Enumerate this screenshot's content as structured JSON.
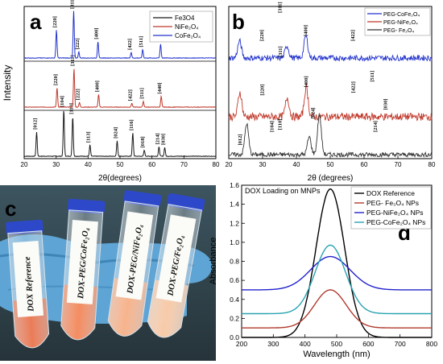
{
  "panel_letters": {
    "a": "a",
    "b": "b",
    "c": "c",
    "d": "d"
  },
  "chart_data": [
    {
      "panel": "a",
      "type": "line",
      "xlabel": "2θ(degrees)",
      "ylabel": "Intensity",
      "xlim": [
        20,
        80
      ],
      "x_ticks": [
        20,
        30,
        40,
        50,
        60,
        70,
        80
      ],
      "grid": false,
      "legend_position": "top-right",
      "series": [
        {
          "name": "Fe3O4",
          "color": "#1a1a1a",
          "peaks": [
            {
              "two_theta": 23.9,
              "height": 0.52,
              "label": "[012]"
            },
            {
              "two_theta": 32.4,
              "height": 1.0,
              "label": "[104]"
            },
            {
              "two_theta": 35.2,
              "height": 0.85,
              "label": "[110]"
            },
            {
              "two_theta": 40.6,
              "height": 0.24,
              "label": "[113]"
            },
            {
              "two_theta": 49.1,
              "height": 0.33,
              "label": "[024]"
            },
            {
              "two_theta": 54.0,
              "height": 0.5,
              "label": "[116]"
            },
            {
              "two_theta": 57.6,
              "height": 0.13,
              "label": "[018]"
            },
            {
              "two_theta": 62.2,
              "height": 0.2,
              "label": "[214]"
            },
            {
              "two_theta": 64.0,
              "height": 0.19,
              "label": "[030]"
            }
          ]
        },
        {
          "name": "NiFe₂O₄",
          "color": "#c0392b",
          "peaks": [
            {
              "two_theta": 30.3,
              "height": 0.5,
              "label": "[220]"
            },
            {
              "two_theta": 35.6,
              "height": 1.0,
              "label": "[311]"
            },
            {
              "two_theta": 37.3,
              "height": 0.12,
              "label": "[222]"
            },
            {
              "two_theta": 43.3,
              "height": 0.33,
              "label": "[400]"
            },
            {
              "two_theta": 53.7,
              "height": 0.1,
              "label": "[422]"
            },
            {
              "two_theta": 57.3,
              "height": 0.15,
              "label": "[511]"
            },
            {
              "two_theta": 62.9,
              "height": 0.28,
              "label": "[440]"
            }
          ]
        },
        {
          "name": "CoFe₂O₄",
          "color": "#2233cc",
          "peaks": [
            {
              "two_theta": 30.1,
              "height": 0.6,
              "label": "[220]"
            },
            {
              "two_theta": 35.5,
              "height": 1.0,
              "label": "[311]"
            },
            {
              "two_theta": 37.1,
              "height": 0.13,
              "label": "[222]"
            },
            {
              "two_theta": 43.1,
              "height": 0.35,
              "label": "[400]"
            },
            {
              "two_theta": 53.5,
              "height": 0.12,
              "label": "[422]"
            },
            {
              "two_theta": 57.1,
              "height": 0.18,
              "label": "[511]"
            },
            {
              "two_theta": 62.7,
              "height": 0.3,
              "label": "[440]"
            }
          ]
        }
      ]
    },
    {
      "panel": "b",
      "type": "line",
      "xlabel": "2θ (degrees)",
      "ylabel": "",
      "xlim": [
        20,
        80
      ],
      "x_ticks": [
        20,
        30,
        40,
        50,
        60,
        70,
        80
      ],
      "grid": false,
      "legend_position": "top-right",
      "series": [
        {
          "name": "PEG-CoFe₂O₄",
          "color": "#2233cc",
          "noise": 0.14,
          "peaks": [
            {
              "two_theta": 30.2,
              "height": 0.3,
              "label": "[220]"
            },
            {
              "two_theta": 35.6,
              "height": 1.0,
              "label": "[311]"
            },
            {
              "two_theta": 43.2,
              "height": 0.42,
              "label": "[400]"
            },
            {
              "two_theta": 57.2,
              "height": 0.3,
              "label": "[422]"
            },
            {
              "two_theta": 62.8,
              "height": 0.55,
              "label": "[511]"
            }
          ]
        },
        {
          "name": "PEG-NiFe₂O₄",
          "color": "#c0392b",
          "noise": 0.14,
          "peaks": [
            {
              "two_theta": 30.3,
              "height": 0.3,
              "label": "[220]"
            },
            {
              "two_theta": 35.7,
              "height": 1.0,
              "label": "[311]"
            },
            {
              "two_theta": 43.3,
              "height": 0.45,
              "label": "[400]"
            },
            {
              "two_theta": 57.3,
              "height": 0.35,
              "label": "[422]"
            },
            {
              "two_theta": 62.9,
              "height": 0.55,
              "label": "[511]"
            }
          ]
        },
        {
          "name": "PEG- Fe₂O₄",
          "color": "#333333",
          "noise": 0.1,
          "peaks": [
            {
              "two_theta": 23.8,
              "height": 0.1,
              "label": "[012]"
            },
            {
              "two_theta": 33.2,
              "height": 0.4,
              "label": "[104]"
            },
            {
              "two_theta": 35.6,
              "height": 0.45,
              "label": "[110]"
            },
            {
              "two_theta": 45.3,
              "height": 0.7,
              "label": "[024]"
            },
            {
              "two_theta": 63.8,
              "height": 0.4,
              "label": "[214]"
            },
            {
              "two_theta": 66.8,
              "height": 0.9,
              "label": "[030]"
            }
          ]
        }
      ]
    },
    {
      "panel": "d",
      "type": "line",
      "title": "DOX Loading on MNPs",
      "xlabel": "Wavelength (nm)",
      "ylabel": "Absorbance",
      "xlim": [
        200,
        800
      ],
      "ylim": [
        0.0,
        1.6
      ],
      "x_ticks": [
        200,
        300,
        400,
        500,
        600,
        700,
        800
      ],
      "y_ticks": [
        0.0,
        0.2,
        0.4,
        0.6,
        0.8,
        1.0,
        1.2,
        1.4,
        1.6
      ],
      "grid": false,
      "legend_position": "top-right",
      "series": [
        {
          "name": "DOX Reference",
          "color": "#000000",
          "baseline": 0.0,
          "peak_x": 480,
          "peak_y": 1.56,
          "width_nm": 45
        },
        {
          "name": "PEG- Fe₃O₄ NPs",
          "color": "#b03a2e",
          "baseline": 0.1,
          "peak_x": 480,
          "peak_y": 0.5,
          "width_nm": 50
        },
        {
          "name": "PEG-NiFe₂O₄ NPs",
          "color": "#2222cc",
          "baseline": 0.5,
          "peak_x": 480,
          "peak_y": 0.85,
          "width_nm": 62
        },
        {
          "name": "PEG-CoFe₂O₄ NPs",
          "color": "#2aa3b0",
          "baseline": 0.25,
          "peak_x": 480,
          "peak_y": 0.97,
          "width_nm": 48
        }
      ]
    }
  ],
  "photo": {
    "tube_labels": [
      "DOX Reference",
      "DOX-PEG/CoFe₂O₄",
      "DOX-PEG/NiFe₂O₄",
      "DOX-PEG/Fe₂O₄"
    ],
    "tube_liquid_colors": [
      "#e3501f",
      "#f0662c",
      "#f49a66",
      "#f5b98c"
    ],
    "glove_color": "#5ea4d4",
    "background_color": "#33464f"
  }
}
